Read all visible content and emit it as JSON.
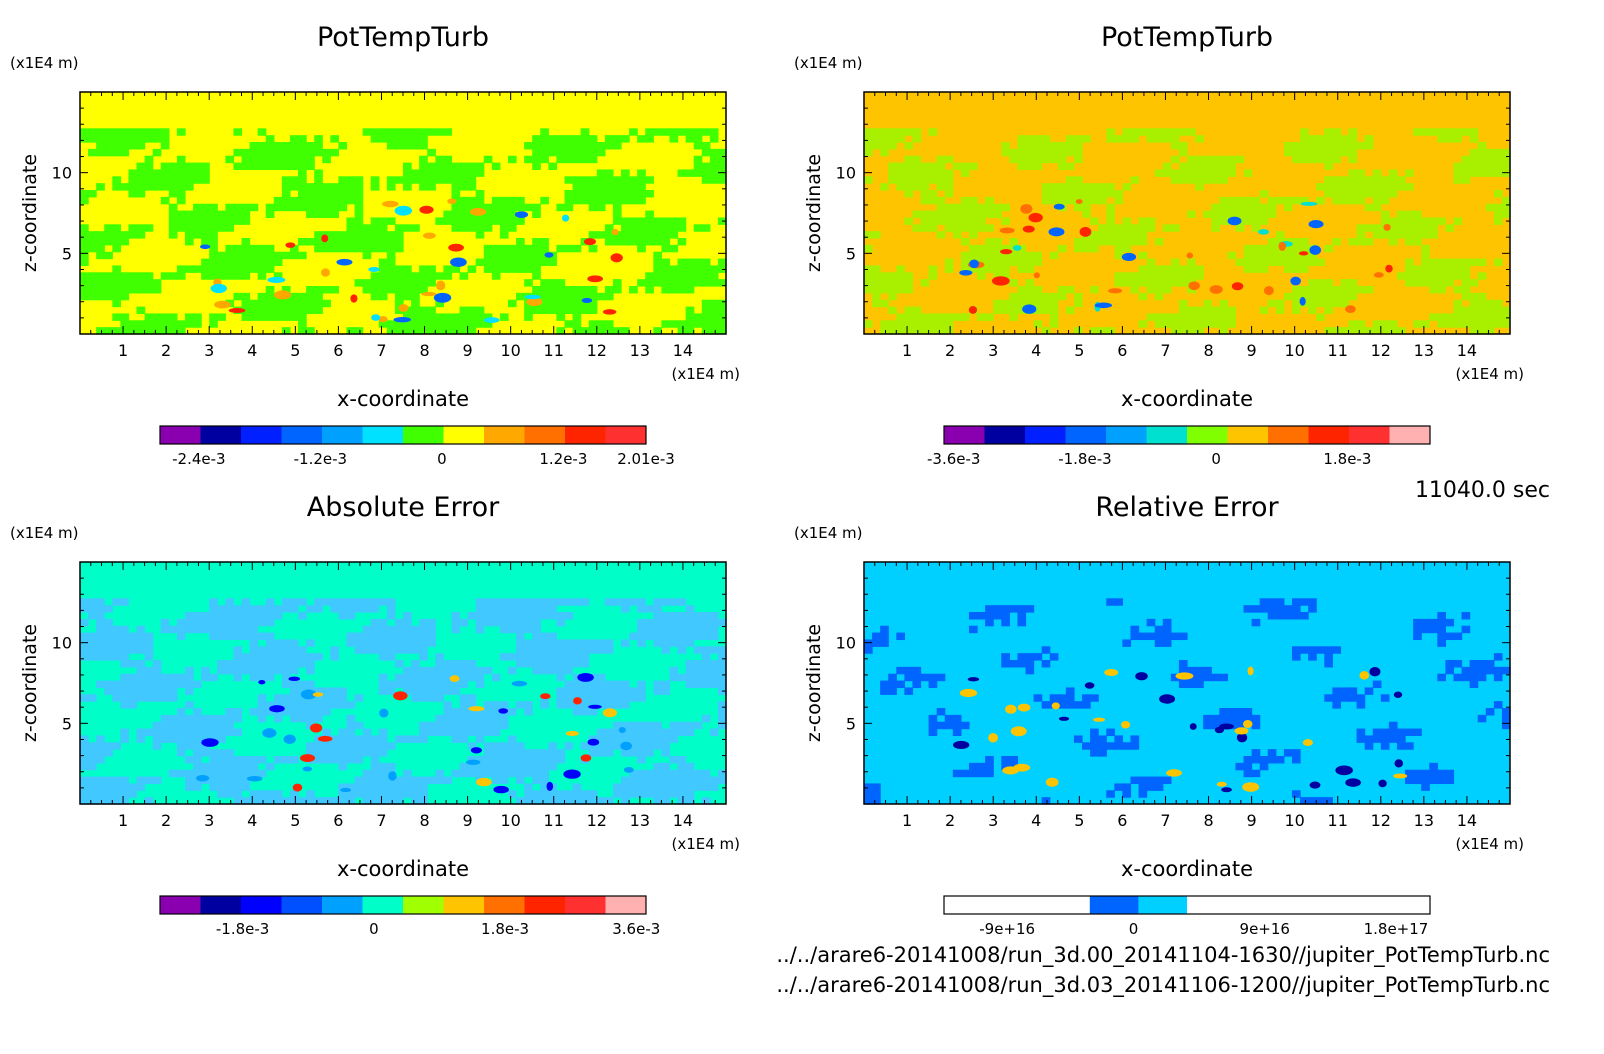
{
  "time_label": "11040.0 sec",
  "files": [
    "../../arare6-20141008/run_3d.00_20141104-1630//jupiter_PotTempTurb.nc",
    "../../arare6-20141008/run_3d.03_20141106-1200//jupiter_PotTempTurb.nc"
  ],
  "chart_data": [
    {
      "type": "heatmap",
      "title": "PotTempTurb",
      "xlabel": "x-coordinate",
      "ylabel": "z-coordinate",
      "x_unit": "(x1E4 m)",
      "y_unit": "(x1E4 m)",
      "xlim": [
        0,
        15
      ],
      "ylim": [
        0,
        15
      ],
      "x_ticks": [
        "1",
        "2",
        "3",
        "4",
        "5",
        "6",
        "7",
        "8",
        "9",
        "10",
        "11",
        "12",
        "13",
        "14"
      ],
      "y_ticks": [
        "5",
        "10"
      ],
      "background_color": "#ffff00",
      "colorbar": {
        "colors": [
          "#8a00b0",
          "#0000a0",
          "#0020ff",
          "#0064ff",
          "#00a0ff",
          "#00e0ff",
          "#40ff00",
          "#ffff00",
          "#ffa800",
          "#ff7000",
          "#ff2400",
          "#ff3030"
        ],
        "labels": [
          {
            "text": "-2.4e-3",
            "pos": 0.08
          },
          {
            "text": "-1.2e-3",
            "pos": 0.33
          },
          {
            "text": "0",
            "pos": 0.58
          },
          {
            "text": "1.2e-3",
            "pos": 0.83
          },
          {
            "text": "2.01e-3",
            "pos": 1.0
          }
        ]
      }
    },
    {
      "type": "heatmap",
      "title": "PotTempTurb",
      "xlabel": "x-coordinate",
      "ylabel": "z-coordinate",
      "x_unit": "(x1E4 m)",
      "y_unit": "(x1E4 m)",
      "xlim": [
        0,
        15
      ],
      "ylim": [
        0,
        15
      ],
      "x_ticks": [
        "1",
        "2",
        "3",
        "4",
        "5",
        "6",
        "7",
        "8",
        "9",
        "10",
        "11",
        "12",
        "13",
        "14"
      ],
      "y_ticks": [
        "5",
        "10"
      ],
      "background_color": "#ffc400",
      "colorbar": {
        "colors": [
          "#8a00b0",
          "#0000a0",
          "#0020ff",
          "#0064ff",
          "#00a0ff",
          "#00e0d0",
          "#80ff00",
          "#ffc400",
          "#ff7000",
          "#ff2400",
          "#ff3030",
          "#ffb0b0"
        ],
        "labels": [
          {
            "text": "-3.6e-3",
            "pos": 0.02
          },
          {
            "text": "-1.8e-3",
            "pos": 0.29
          },
          {
            "text": "0",
            "pos": 0.56
          },
          {
            "text": "1.8e-3",
            "pos": 0.83
          }
        ]
      }
    },
    {
      "type": "heatmap",
      "title": "Absolute Error",
      "xlabel": "x-coordinate",
      "ylabel": "z-coordinate",
      "x_unit": "(x1E4 m)",
      "y_unit": "(x1E4 m)",
      "xlim": [
        0,
        15
      ],
      "ylim": [
        0,
        15
      ],
      "x_ticks": [
        "1",
        "2",
        "3",
        "4",
        "5",
        "6",
        "7",
        "8",
        "9",
        "10",
        "11",
        "12",
        "13",
        "14"
      ],
      "y_ticks": [
        "5",
        "10"
      ],
      "background_color": "#00ffc8",
      "colorbar": {
        "colors": [
          "#8a00b0",
          "#0000a0",
          "#0000ff",
          "#0050ff",
          "#00a0ff",
          "#00ffc8",
          "#a0ff00",
          "#ffc400",
          "#ff7000",
          "#ff2400",
          "#ff3030",
          "#ffb0b0"
        ],
        "labels": [
          {
            "text": "-1.8e-3",
            "pos": 0.17
          },
          {
            "text": "0",
            "pos": 0.44
          },
          {
            "text": "1.8e-3",
            "pos": 0.71
          },
          {
            "text": "3.6e-3",
            "pos": 0.98
          }
        ]
      }
    },
    {
      "type": "heatmap",
      "title": "Relative Error",
      "xlabel": "x-coordinate",
      "ylabel": "z-coordinate",
      "x_unit": "(x1E4 m)",
      "y_unit": "(x1E4 m)",
      "xlim": [
        0,
        15
      ],
      "ylim": [
        0,
        15
      ],
      "x_ticks": [
        "1",
        "2",
        "3",
        "4",
        "5",
        "6",
        "7",
        "8",
        "9",
        "10",
        "11",
        "12",
        "13",
        "14"
      ],
      "y_ticks": [
        "5",
        "10"
      ],
      "background_color": "#00d0ff",
      "colorbar": {
        "colors": [
          "#ffffff",
          "#ffffff",
          "#ffffff",
          "#0064ff",
          "#00d0ff",
          "#ffffff",
          "#ffffff",
          "#ffffff",
          "#ffffff",
          "#ffffff"
        ],
        "labels": [
          {
            "text": "-9e+16",
            "pos": 0.13
          },
          {
            "text": "0",
            "pos": 0.39
          },
          {
            "text": "9e+16",
            "pos": 0.66
          },
          {
            "text": "1.8e+17",
            "pos": 0.93
          }
        ]
      }
    }
  ]
}
